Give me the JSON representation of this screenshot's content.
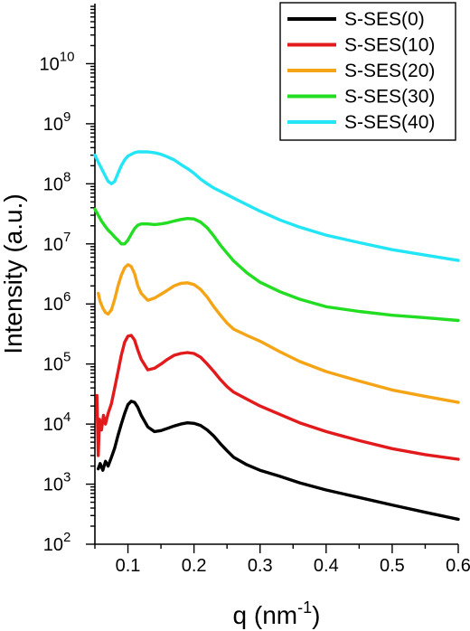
{
  "chart_data": {
    "type": "line",
    "title": "",
    "xlabel": "q (nm",
    "xlabel_sup": "-1",
    "xlabel_close": ")",
    "ylabel": "Intensity (a.u.)",
    "xlim": [
      0.05,
      0.6
    ],
    "ylim": [
      100,
      100000000000
    ],
    "yscale": "log",
    "x_ticks": [
      0.1,
      0.2,
      0.3,
      0.4,
      0.5,
      0.6
    ],
    "x_tick_labels": [
      "0.1",
      "0.2",
      "0.3",
      "0.4",
      "0.5",
      "0.6"
    ],
    "y_ticks": [
      {
        "exp": 2,
        "base": "10",
        "sup": "2"
      },
      {
        "exp": 3,
        "base": "10",
        "sup": "3"
      },
      {
        "exp": 4,
        "base": "10",
        "sup": "4"
      },
      {
        "exp": 5,
        "base": "10",
        "sup": "5"
      },
      {
        "exp": 6,
        "base": "10",
        "sup": "6"
      },
      {
        "exp": 7,
        "base": "10",
        "sup": "7"
      },
      {
        "exp": 8,
        "base": "10",
        "sup": "8"
      },
      {
        "exp": 9,
        "base": "10",
        "sup": "9"
      },
      {
        "exp": 10,
        "base": "10",
        "sup": "10"
      }
    ],
    "grid": false,
    "legend_position": "top-right",
    "series": [
      {
        "name": "S-SES(0)",
        "color": "#000000",
        "x": [
          0.055,
          0.058,
          0.062,
          0.066,
          0.07,
          0.075,
          0.08,
          0.085,
          0.09,
          0.095,
          0.1,
          0.105,
          0.11,
          0.115,
          0.12,
          0.13,
          0.14,
          0.15,
          0.16,
          0.17,
          0.18,
          0.19,
          0.2,
          0.21,
          0.22,
          0.23,
          0.24,
          0.25,
          0.26,
          0.28,
          0.3,
          0.33,
          0.36,
          0.4,
          0.45,
          0.5,
          0.55,
          0.6
        ],
        "y": [
          1800,
          2200,
          1700,
          2400,
          2000,
          2800,
          4000,
          6500,
          10000,
          15000,
          21000,
          24000,
          23000,
          19000,
          14000,
          9000,
          7500,
          7800,
          8500,
          9300,
          10000,
          10500,
          10300,
          9500,
          8000,
          6300,
          4700,
          3600,
          2800,
          2100,
          1700,
          1350,
          1050,
          800,
          600,
          450,
          340,
          260
        ]
      },
      {
        "name": "S-SES(10)",
        "color": "#e31a1c",
        "x": [
          0.053,
          0.055,
          0.057,
          0.06,
          0.063,
          0.066,
          0.07,
          0.075,
          0.08,
          0.085,
          0.09,
          0.095,
          0.1,
          0.105,
          0.11,
          0.115,
          0.12,
          0.13,
          0.14,
          0.15,
          0.16,
          0.17,
          0.18,
          0.19,
          0.2,
          0.21,
          0.22,
          0.23,
          0.24,
          0.25,
          0.26,
          0.28,
          0.3,
          0.33,
          0.36,
          0.4,
          0.45,
          0.5,
          0.55,
          0.6
        ],
        "y": [
          30000,
          3000,
          12000,
          8000,
          14000,
          10000,
          15000,
          22000,
          40000,
          75000,
          140000,
          230000,
          290000,
          300000,
          250000,
          170000,
          120000,
          80000,
          85000,
          100000,
          120000,
          140000,
          150000,
          155000,
          150000,
          130000,
          100000,
          75000,
          55000,
          42000,
          34000,
          26000,
          20000,
          14500,
          10500,
          7500,
          5300,
          3900,
          3100,
          2600
        ]
      },
      {
        "name": "S-SES(20)",
        "color": "#f5a416",
        "x": [
          0.055,
          0.058,
          0.062,
          0.066,
          0.07,
          0.075,
          0.08,
          0.085,
          0.09,
          0.095,
          0.1,
          0.105,
          0.11,
          0.115,
          0.12,
          0.13,
          0.14,
          0.15,
          0.16,
          0.17,
          0.18,
          0.19,
          0.2,
          0.21,
          0.22,
          0.23,
          0.24,
          0.25,
          0.26,
          0.28,
          0.3,
          0.33,
          0.36,
          0.4,
          0.45,
          0.5,
          0.55,
          0.6
        ],
        "y": [
          1500000,
          1100000,
          850000,
          720000,
          680000,
          800000,
          1200000,
          2000000,
          3000000,
          4000000,
          4500000,
          4200000,
          3200000,
          2000000,
          1500000,
          1150000,
          1250000,
          1450000,
          1700000,
          2000000,
          2200000,
          2250000,
          2100000,
          1750000,
          1300000,
          900000,
          650000,
          480000,
          380000,
          300000,
          240000,
          160000,
          110000,
          75000,
          52000,
          37000,
          29000,
          23000
        ]
      },
      {
        "name": "S-SES(30)",
        "color": "#22dd22",
        "x": [
          0.05,
          0.055,
          0.06,
          0.065,
          0.07,
          0.075,
          0.08,
          0.085,
          0.09,
          0.095,
          0.1,
          0.105,
          0.11,
          0.115,
          0.12,
          0.13,
          0.14,
          0.15,
          0.16,
          0.17,
          0.18,
          0.19,
          0.2,
          0.21,
          0.22,
          0.23,
          0.24,
          0.25,
          0.26,
          0.28,
          0.3,
          0.33,
          0.36,
          0.4,
          0.45,
          0.5,
          0.55,
          0.6
        ],
        "y": [
          38000000,
          30000000,
          24000000,
          20000000,
          17000000,
          15000000,
          13000000,
          11500000,
          10000000,
          10000000,
          11500000,
          14500000,
          18000000,
          20500000,
          21500000,
          21500000,
          21000000,
          21500000,
          22500000,
          24000000,
          25500000,
          26500000,
          26000000,
          23000000,
          18500000,
          13500000,
          9500000,
          7000000,
          5200000,
          3300000,
          2300000,
          1600000,
          1200000,
          900000,
          750000,
          650000,
          590000,
          530000
        ]
      },
      {
        "name": "S-SES(40)",
        "color": "#22e5f5",
        "x": [
          0.05,
          0.055,
          0.06,
          0.065,
          0.07,
          0.075,
          0.08,
          0.085,
          0.09,
          0.095,
          0.1,
          0.105,
          0.11,
          0.115,
          0.12,
          0.13,
          0.14,
          0.15,
          0.16,
          0.17,
          0.18,
          0.19,
          0.2,
          0.21,
          0.22,
          0.23,
          0.24,
          0.25,
          0.26,
          0.28,
          0.3,
          0.33,
          0.36,
          0.4,
          0.45,
          0.5,
          0.55,
          0.6
        ],
        "y": [
          300000000,
          230000000,
          180000000,
          140000000,
          110000000,
          100000000,
          110000000,
          150000000,
          200000000,
          250000000,
          290000000,
          310000000,
          330000000,
          340000000,
          340000000,
          340000000,
          330000000,
          310000000,
          280000000,
          250000000,
          210000000,
          180000000,
          150000000,
          120000000,
          100000000,
          85000000,
          75000000,
          66000000,
          58000000,
          45000000,
          35000000,
          25000000,
          19000000,
          14000000,
          10500000,
          8000000,
          6500000,
          5300000
        ]
      }
    ]
  }
}
